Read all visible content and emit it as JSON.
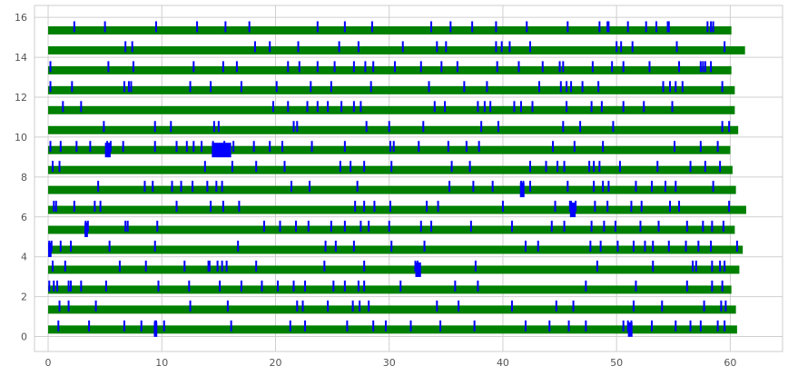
{
  "chart_data": {
    "type": "bar",
    "title": "",
    "xlabel": "",
    "ylabel": "",
    "xlim": [
      -1.2,
      64.6
    ],
    "ylim": [
      -0.75,
      16.6
    ],
    "x_ticks": [
      "0",
      "10",
      "20",
      "30",
      "40",
      "50",
      "60"
    ],
    "y_ticks": [
      "0",
      "2",
      "4",
      "6",
      "8",
      "10",
      "12",
      "14",
      "16"
    ],
    "grid": true,
    "background_color": "#eaeaf2",
    "series": [
      {
        "color": "#008000",
        "values": [
          {
            "y": 0,
            "start": 0,
            "end": 60.6
          },
          {
            "y": 1,
            "start": 0,
            "end": 60.5
          },
          {
            "y": 2,
            "start": 0,
            "end": 60.1
          },
          {
            "y": 3,
            "start": 0,
            "end": 60.8
          },
          {
            "y": 4,
            "start": 0,
            "end": 61.1
          },
          {
            "y": 5,
            "start": 0,
            "end": 60.4
          },
          {
            "y": 6,
            "start": 0,
            "end": 61.4
          },
          {
            "y": 7,
            "start": 0,
            "end": 60.5
          },
          {
            "y": 8,
            "start": 0,
            "end": 60.2
          },
          {
            "y": 9,
            "start": 0,
            "end": 60.0
          },
          {
            "y": 10,
            "start": 0,
            "end": 60.7
          },
          {
            "y": 11,
            "start": 0,
            "end": 60.4
          },
          {
            "y": 12,
            "start": 0,
            "end": 60.4
          },
          {
            "y": 13,
            "start": 0,
            "end": 60.1
          },
          {
            "y": 14,
            "start": 0,
            "end": 61.3
          },
          {
            "y": 15,
            "start": 0,
            "end": 60.1
          }
        ]
      },
      {
        "color": "#0000ff",
        "values": [
          {
            "y": 0,
            "x": [
              0.9,
              3.6,
              6.7,
              8.2,
              9.4,
              9.5,
              10.2,
              16.1,
              21.3,
              22.6,
              26.3,
              28.6,
              29.7,
              31.9,
              34.5,
              37.5,
              42.0,
              44.1,
              45.8,
              47.3,
              50.6,
              51.0,
              51.3,
              53.1,
              55.2,
              56.5,
              57.4,
              58.9,
              59.5
            ]
          },
          {
            "y": 1,
            "x": [
              1.0,
              1.8,
              4.2,
              12.5,
              15.8,
              21.9,
              22.4,
              24.6,
              26.8,
              27.4,
              28.2,
              34.2,
              36.1,
              40.8,
              44.7,
              46.2,
              51.5,
              54.0,
              57.7,
              59.2,
              59.6
            ]
          },
          {
            "y": 2,
            "x": [
              0.1,
              0.5,
              0.8,
              1.8,
              2.0,
              2.9,
              5.1,
              9.7,
              12.4,
              15.1,
              17.0,
              18.8,
              20.2,
              21.6,
              22.6,
              25.1,
              26.1,
              27.3,
              27.8,
              31.0,
              35.8,
              37.8,
              47.3,
              51.7,
              56.2,
              58.4,
              59.3
            ]
          },
          {
            "y": 3,
            "x": [
              0.4,
              1.5,
              6.3,
              8.6,
              12.0,
              14.1,
              14.2,
              14.9,
              15.3,
              15.7,
              18.3,
              24.3,
              27.8,
              32.3,
              32.5,
              37.6,
              48.3,
              53.2,
              56.7,
              57.0,
              58.4,
              59.1,
              59.5
            ]
          },
          {
            "y": 4,
            "x": [
              0.1,
              0.3,
              1.1,
              2.0,
              5.4,
              9.4,
              16.7,
              24.4,
              25.3,
              26.9,
              30.2,
              33.1,
              42.0,
              43.1,
              47.7,
              48.6,
              50.1,
              51.5,
              52.5,
              53.2,
              54.6,
              56.1,
              57.2,
              58.3,
              60.6
            ]
          },
          {
            "y": 5,
            "x": [
              3.3,
              3.5,
              6.8,
              7.0,
              9.6,
              19.0,
              20.4,
              21.8,
              22.9,
              24.9,
              26.1,
              27.5,
              28.2,
              30.0,
              32.8,
              33.7,
              37.2,
              40.8,
              44.3,
              45.4,
              47.8,
              48.9,
              49.9,
              52.1,
              53.7,
              56.2,
              57.6,
              58.4,
              59.4
            ]
          },
          {
            "y": 6,
            "x": [
              0.5,
              0.7,
              2.3,
              4.1,
              4.6,
              11.3,
              14.3,
              15.4,
              16.8,
              27.0,
              27.8,
              28.7,
              30.1,
              33.3,
              34.3,
              40.0,
              44.6,
              45.9,
              46.0,
              46.4,
              48.1,
              49.2,
              51.3,
              52.2,
              54.7,
              55.5,
              59.9
            ]
          },
          {
            "y": 7,
            "x": [
              4.4,
              8.5,
              9.2,
              10.9,
              11.7,
              12.7,
              14.0,
              14.8,
              15.3,
              21.4,
              23.0,
              27.2,
              35.3,
              37.4,
              39.1,
              41.6,
              41.8,
              42.4,
              45.7,
              48.0,
              48.8,
              49.3,
              51.7,
              53.1,
              54.3,
              55.2,
              58.5
            ]
          },
          {
            "y": 8,
            "x": [
              0.4,
              1.0,
              13.8,
              16.2,
              18.3,
              20.8,
              25.7,
              26.6,
              27.8,
              30.2,
              35.5,
              37.1,
              42.4,
              43.8,
              44.8,
              45.4,
              47.6,
              48.0,
              48.5,
              50.3,
              53.6,
              56.5,
              57.8,
              59.1
            ]
          },
          {
            "y": 9,
            "x": [
              0.2,
              1.1,
              2.5,
              3.7,
              5.2,
              5.5,
              6.6,
              9.4,
              11.3,
              12.2,
              12.8,
              13.5,
              14.5,
              15.5,
              16.3,
              18.1,
              19.5,
              20.6,
              23.2,
              26.1,
              30.1,
              30.4,
              32.6,
              35.2,
              36.8,
              37.9,
              44.4,
              46.3,
              48.8,
              55.1,
              57.4,
              58.9
            ]
          },
          {
            "y": 10,
            "x": [
              4.9,
              9.4,
              10.8,
              14.6,
              15.0,
              21.6,
              21.9,
              28.0,
              30.0,
              33.0,
              38.1,
              39.6,
              45.3,
              46.8,
              49.7,
              59.3,
              59.9
            ]
          },
          {
            "y": 11,
            "x": [
              1.3,
              2.9,
              19.8,
              21.1,
              22.8,
              23.7,
              24.6,
              25.8,
              26.9,
              27.5,
              34.0,
              34.9,
              37.8,
              38.4,
              38.9,
              41.0,
              41.6,
              42.6,
              45.6,
              47.8,
              48.7,
              50.6,
              52.4,
              54.9
            ]
          },
          {
            "y": 12,
            "x": [
              0.2,
              2.1,
              6.7,
              7.1,
              7.3,
              12.5,
              14.3,
              17.0,
              20.1,
              23.1,
              24.9,
              28.4,
              33.5,
              36.6,
              38.6,
              43.2,
              45.1,
              45.6,
              46.0,
              47.0,
              48.4,
              54.1,
              54.7,
              55.2,
              55.8,
              59.3
            ]
          },
          {
            "y": 13,
            "x": [
              0.2,
              5.3,
              7.5,
              12.8,
              15.4,
              16.6,
              21.1,
              22.1,
              23.7,
              25.2,
              26.9,
              27.9,
              28.6,
              30.5,
              32.8,
              34.6,
              36.0,
              39.5,
              41.4,
              43.5,
              45.0,
              45.3,
              47.9,
              49.6,
              50.6,
              52.9,
              55.5,
              57.4,
              57.6,
              57.8,
              58.3
            ]
          },
          {
            "y": 14,
            "x": [
              6.8,
              7.4,
              18.2,
              19.5,
              22.0,
              25.6,
              27.3,
              31.2,
              34.2,
              35.0,
              39.4,
              39.9,
              40.6,
              42.4,
              50.0,
              50.4,
              51.4,
              55.3,
              59.5
            ]
          },
          {
            "y": 15,
            "x": [
              2.3,
              5.0,
              9.5,
              13.1,
              15.6,
              17.7,
              23.7,
              26.1,
              28.5,
              33.7,
              35.4,
              37.3,
              39.4,
              42.1,
              45.7,
              48.5,
              49.2,
              49.3,
              51.0,
              52.6,
              53.5,
              54.5,
              54.6,
              58.0,
              58.3,
              58.5
            ]
          }
        ]
      }
    ],
    "wide_blue_marks": [
      {
        "y": 0,
        "start": 9.3,
        "end": 9.6
      },
      {
        "y": 0,
        "start": 51.0,
        "end": 51.4
      },
      {
        "y": 3,
        "start": 32.3,
        "end": 32.8
      },
      {
        "y": 4,
        "start": 0.0,
        "end": 0.3
      },
      {
        "y": 5,
        "start": 3.2,
        "end": 3.5
      },
      {
        "y": 6,
        "start": 45.9,
        "end": 46.4
      },
      {
        "y": 7,
        "start": 41.5,
        "end": 41.9
      },
      {
        "y": 9,
        "start": 5.0,
        "end": 5.5
      },
      {
        "y": 9,
        "start": 14.4,
        "end": 16.1
      }
    ]
  }
}
